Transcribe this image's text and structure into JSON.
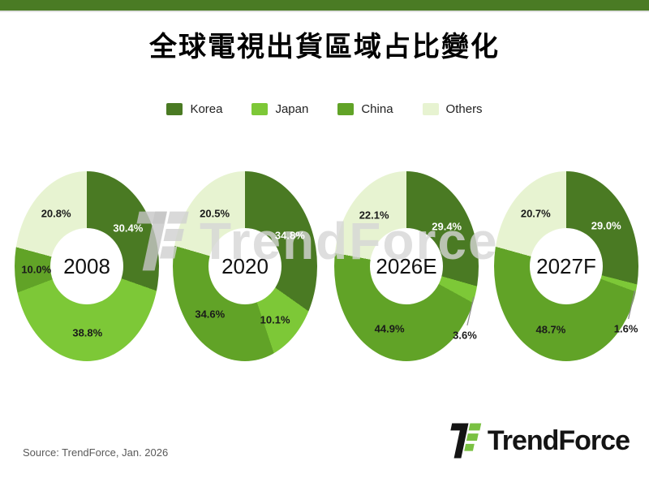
{
  "header": {
    "title": "全球電視出貨區域占比變化"
  },
  "watermark": {
    "text": "TrendForce"
  },
  "footer": {
    "source": "Source: TrendForce, Jan. 2026",
    "brand": "TrendForce"
  },
  "theme": {
    "top_bar_color": "#4a7b24",
    "background": "#ffffff",
    "title_color": "#000000",
    "source_color": "#595959",
    "logo_green": "#7ac142",
    "logo_black": "#141414",
    "leader_line_color": "#8c8c8c"
  },
  "chart_data": {
    "type": "pie",
    "subtype": "donut",
    "title": "全球電視出貨區域占比變化",
    "unit": "%",
    "legend_position": "top-center",
    "categories": [
      "Korea",
      "Japan",
      "China",
      "Others"
    ],
    "colors": [
      "#4a7a23",
      "#7dc837",
      "#61a327",
      "#e7f3d1"
    ],
    "label_text_colors": [
      "#ffffff",
      "#1a1a1a",
      "#1a1a1a",
      "#1a1a1a"
    ],
    "charts": [
      {
        "year": "2008",
        "values": [
          30.4,
          38.8,
          10.0,
          20.8
        ]
      },
      {
        "year": "2020",
        "values": [
          34.8,
          10.1,
          34.6,
          20.5
        ]
      },
      {
        "year": "2026E",
        "values": [
          29.4,
          3.6,
          44.9,
          22.1
        ]
      },
      {
        "year": "2027F",
        "values": [
          29.0,
          1.6,
          48.7,
          20.7
        ]
      }
    ]
  }
}
